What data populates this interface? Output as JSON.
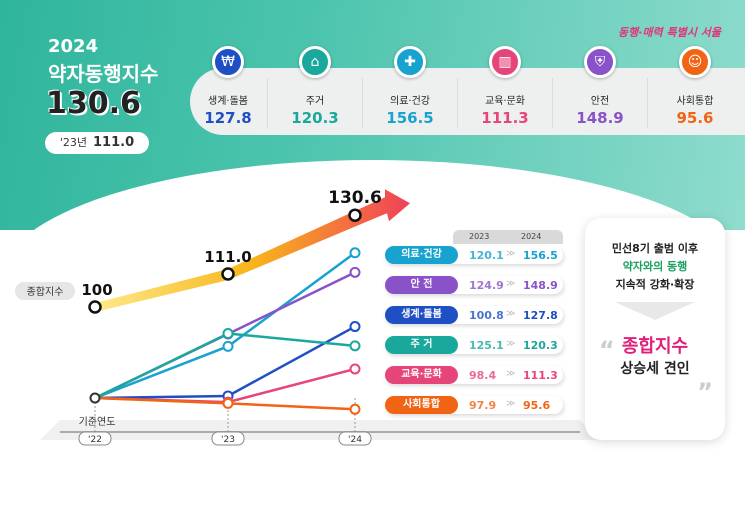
{
  "slogan": "동행·매력 특별시 서울",
  "header": {
    "year": "2024",
    "title": "약자동행지수",
    "total": "130.6",
    "prev_label": "'23년",
    "prev_value": "111.0"
  },
  "categories": [
    {
      "label": "생계·돌봄",
      "value": "127.8",
      "color": "#1e4fc4",
      "icon": "money-bag-icon"
    },
    {
      "label": "주거",
      "value": "120.3",
      "color": "#1aa89c",
      "icon": "house-icon"
    },
    {
      "label": "의료·건강",
      "value": "156.5",
      "color": "#17a2cf",
      "icon": "medical-hands-icon"
    },
    {
      "label": "교육·문화",
      "value": "111.3",
      "color": "#e6457a",
      "icon": "book-icon"
    },
    {
      "label": "안전",
      "value": "148.9",
      "color": "#8a52c9",
      "icon": "shield-icon"
    },
    {
      "label": "사회통합",
      "value": "95.6",
      "color": "#f06414",
      "icon": "people-icon"
    }
  ],
  "chart_data": {
    "type": "line",
    "categories": [
      "'22",
      "'23",
      "'24"
    ],
    "base_label": "기준연도",
    "total_label": "종합지수",
    "total": {
      "name": "종합지수",
      "values": [
        100,
        111.0,
        130.6
      ],
      "labels": [
        "100",
        "111.0",
        "130.6"
      ]
    },
    "series": [
      {
        "name": "의료·건강",
        "values": [
          100,
          120.1,
          156.5
        ],
        "color": "#17a2cf"
      },
      {
        "name": "안 전",
        "values": [
          100,
          124.9,
          148.9
        ],
        "color": "#8a52c9"
      },
      {
        "name": "생계·돌봄",
        "values": [
          100,
          100.8,
          127.8
        ],
        "color": "#1e4fc4"
      },
      {
        "name": "주 거",
        "values": [
          100,
          125.1,
          120.3
        ],
        "color": "#1aa89c"
      },
      {
        "name": "교육·문화",
        "values": [
          100,
          98.4,
          111.3
        ],
        "color": "#e6457a"
      },
      {
        "name": "사회통합",
        "values": [
          100,
          97.9,
          95.6
        ],
        "color": "#f06414"
      }
    ]
  },
  "table": {
    "col_2023": "2023",
    "col_2024": "2024",
    "rows": [
      {
        "label": "의료·건강",
        "v2023": "120.1",
        "v2024": "156.5",
        "color": "#17a2cf"
      },
      {
        "label": "안 전",
        "v2023": "124.9",
        "v2024": "148.9",
        "color": "#8a52c9"
      },
      {
        "label": "생계·돌봄",
        "v2023": "100.8",
        "v2024": "127.8",
        "color": "#1e4fc4"
      },
      {
        "label": "주 거",
        "v2023": "125.1",
        "v2024": "120.3",
        "color": "#1aa89c"
      },
      {
        "label": "교육·문화",
        "v2023": "98.4",
        "v2024": "111.3",
        "color": "#e6457a"
      },
      {
        "label": "사회통합",
        "v2023": "97.9",
        "v2024": "95.6",
        "color": "#f06414"
      }
    ]
  },
  "summary": {
    "line1": "민선8기 출범 이후",
    "line2": "약자와의 동행",
    "line3": "지속적 강화·확장",
    "line4": "종합지수",
    "line5": "상승세 견인"
  }
}
